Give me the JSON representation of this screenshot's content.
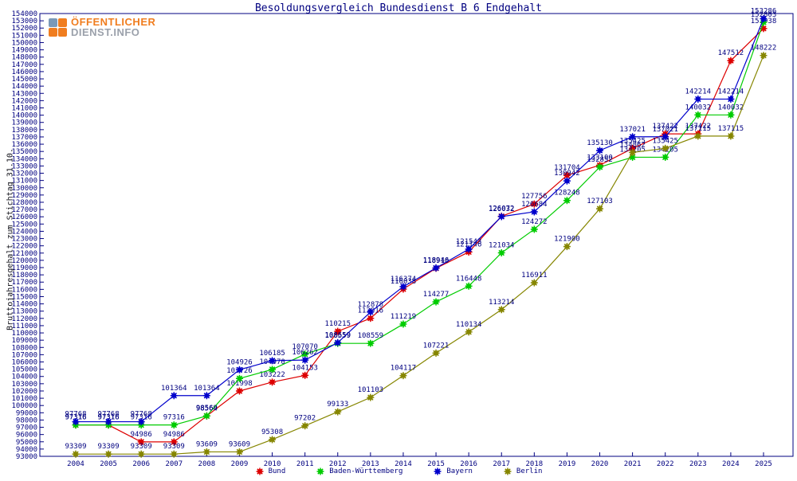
{
  "logo": {
    "line1": "ÖFFENTLICHER",
    "line2": "DIENST.INFO"
  },
  "colors": {
    "axis": "#000080",
    "title": "#000080",
    "label": "#000080",
    "bund": "#dd0000",
    "baden_wuerttemberg": "#00cc00",
    "bayern": "#0000cc",
    "berlin": "#868600",
    "logo_orange": "#f07d1f",
    "logo_gray": "#9ba1ab",
    "logo_blue": "#7a99b8"
  },
  "chart_data": {
    "type": "line",
    "title": "Besoldungsvergleich Bundesdienst B 6 Endgehalt",
    "xlabel": "",
    "ylabel": "Bruttojahresgehalt zum Stichtag 31.10.",
    "ylim": [
      93000,
      154000
    ],
    "ytick_step": 1000,
    "grid": false,
    "legend_position": "bottom",
    "point_labels": true,
    "x": [
      2004,
      2005,
      2006,
      2007,
      2008,
      2009,
      2010,
      2011,
      2012,
      2013,
      2014,
      2015,
      2016,
      2017,
      2018,
      2019,
      2020,
      2021,
      2022,
      2023,
      2024,
      2025
    ],
    "series": [
      {
        "name": "Bund",
        "color": "#dd0000",
        "values": [
          97316,
          97316,
          94986,
          94986,
          98564,
          101998,
          103222,
          104153,
          110215,
          112016,
          116038,
          118910,
          121146,
          126072,
          127756,
          131704,
          133100,
          135425,
          137422,
          137422,
          147512,
          151938
        ]
      },
      {
        "name": "Baden-Württemberg",
        "color": "#00cc00",
        "values": [
          97316,
          97316,
          97316,
          97316,
          98569,
          103726,
          104970,
          107070,
          108559,
          108559,
          111219,
          114277,
          116448,
          121034,
          124272,
          128248,
          132852,
          134205,
          134205,
          140032,
          140032,
          152803
        ]
      },
      {
        "name": "Bayern",
        "color": "#0000cc",
        "values": [
          97768,
          97768,
          97768,
          101364,
          101364,
          104926,
          106185,
          106262,
          108659,
          112878,
          116374,
          118946,
          121543,
          126032,
          126684,
          130942,
          135130,
          137021,
          137021,
          142214,
          142214,
          153286
        ]
      },
      {
        "name": "Berlin",
        "color": "#868600",
        "values": [
          93309,
          93309,
          93309,
          93309,
          93609,
          93609,
          95308,
          97202,
          99133,
          101103,
          104117,
          107221,
          110134,
          113214,
          116911,
          121900,
          127103,
          134862,
          135425,
          137115,
          137115,
          148222
        ]
      }
    ]
  }
}
